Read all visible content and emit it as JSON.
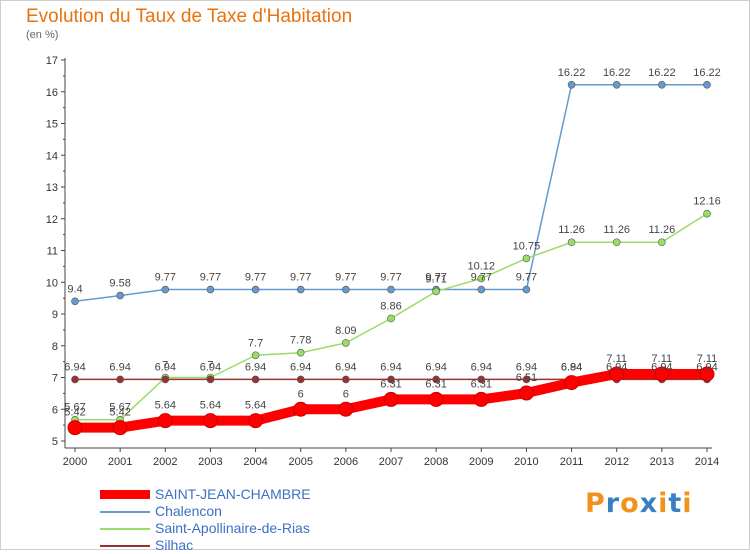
{
  "title": "Evolution du Taux de Taxe d'Habitation",
  "subtitle": "(en %)",
  "chart_data": {
    "type": "line",
    "title": "Evolution du Taux de Taxe d'Habitation",
    "subtitle": "(en %)",
    "xlabel": "",
    "ylabel": "",
    "categories": [
      "2000",
      "2001",
      "2002",
      "2003",
      "2004",
      "2005",
      "2006",
      "2007",
      "2008",
      "2009",
      "2010",
      "2011",
      "2012",
      "2013",
      "2014"
    ],
    "yticks": [
      5,
      6,
      7,
      8,
      9,
      10,
      11,
      12,
      13,
      14,
      15,
      16,
      17
    ],
    "ylim": [
      5,
      17
    ],
    "grid": false,
    "legend_position": "bottom",
    "series": [
      {
        "name": "SAINT-JEAN-CHAMBRE",
        "color": "#ff0000",
        "values": [
          5.42,
          5.42,
          5.64,
          5.64,
          5.64,
          6,
          6,
          6.31,
          6.31,
          6.31,
          6.51,
          6.84,
          7.11,
          7.11,
          7.11
        ],
        "labels": [
          "5.42",
          "5.42",
          "5.64",
          "5.64",
          "5.64",
          "6",
          "6",
          "6.31",
          "6.31",
          "6.31",
          "6.51",
          "6.84",
          "7.11",
          "7.11",
          "7.11"
        ]
      },
      {
        "name": "Chalencon",
        "color": "#6699cc",
        "values": [
          9.4,
          9.58,
          9.77,
          9.77,
          9.77,
          9.77,
          9.77,
          9.77,
          9.77,
          9.77,
          9.77,
          16.22,
          16.22,
          16.22,
          16.22
        ],
        "labels": [
          "9.4",
          "9.58",
          "9.77",
          "9.77",
          "9.77",
          "9.77",
          "9.77",
          "9.77",
          "9.77",
          "9.77",
          "9.77",
          "16.22",
          "16.22",
          "16.22",
          "16.22"
        ]
      },
      {
        "name": "Saint-Apollinaire-de-Rias",
        "color": "#99dd66",
        "values": [
          5.67,
          5.67,
          7,
          7,
          7.7,
          7.78,
          8.09,
          8.86,
          9.71,
          10.12,
          10.75,
          11.26,
          11.26,
          11.26,
          12.16
        ],
        "labels": [
          "5.67",
          "5.67",
          "7",
          "7",
          "7.7",
          "7.78",
          "8.09",
          "8.86",
          "9.71",
          "10.12",
          "10.75",
          "11.26",
          "11.26",
          "11.26",
          "12.16"
        ]
      },
      {
        "name": "Silhac",
        "color": "#993333",
        "values": [
          6.94,
          6.94,
          6.94,
          6.94,
          6.94,
          6.94,
          6.94,
          6.94,
          6.94,
          6.94,
          6.94,
          6.94,
          6.94,
          6.94,
          6.94
        ],
        "labels": [
          "6.94",
          "6.94",
          "6.94",
          "6.94",
          "6.94",
          "6.94",
          "6.94",
          "6.94",
          "6.94",
          "6.94",
          "6.94",
          "6.94",
          "6.94",
          "6.94",
          "6.94"
        ]
      }
    ]
  },
  "logo": {
    "text": "Proxiti"
  }
}
